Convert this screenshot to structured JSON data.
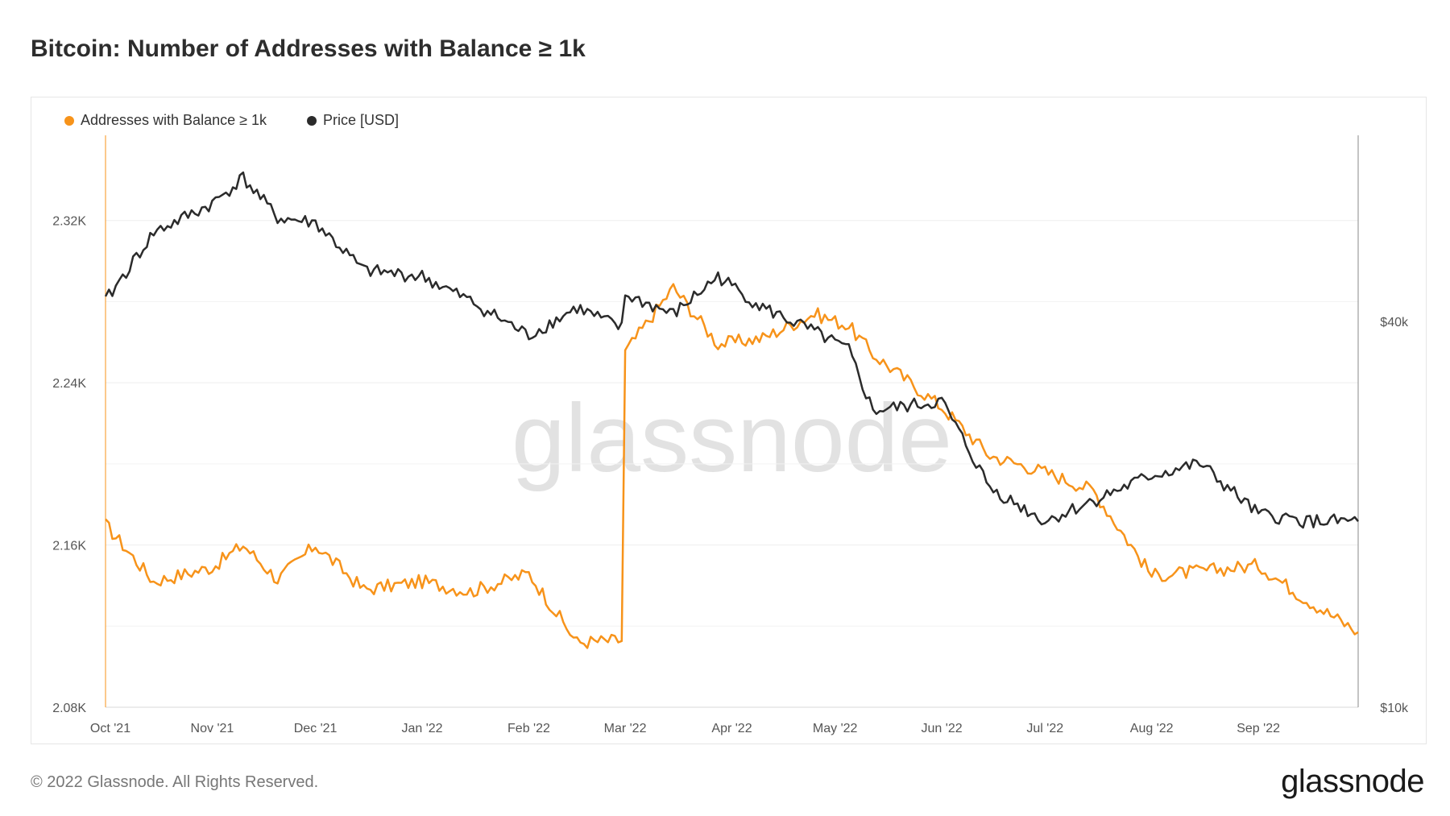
{
  "title": "Bitcoin: Number of Addresses with Balance ≥ 1k",
  "footer": "© 2022 Glassnode. All Rights Reserved.",
  "brand": "glassnode",
  "watermark": "glassnode",
  "colors": {
    "addresses": "#f7931a",
    "price": "#2b2b2b",
    "grid": "#eeeeee"
  },
  "chart_data": {
    "type": "line",
    "title": "Bitcoin: Number of Addresses with Balance ≥ 1k",
    "legend_position": "top-left",
    "grid": true,
    "x_ticks": [
      "Oct '21",
      "Nov '21",
      "Dec '21",
      "Jan '22",
      "Feb '22",
      "Mar '22",
      "Apr '22",
      "May '22",
      "Jun '22",
      "Jul '22",
      "Aug '22",
      "Sep '22"
    ],
    "x": [
      "2021-10-01",
      "2021-10-15",
      "2021-11-01",
      "2021-11-10",
      "2021-11-20",
      "2021-12-01",
      "2021-12-15",
      "2022-01-01",
      "2022-01-15",
      "2022-02-01",
      "2022-02-15",
      "2022-02-28",
      "2022-03-01",
      "2022-03-15",
      "2022-03-28",
      "2022-04-10",
      "2022-04-25",
      "2022-05-05",
      "2022-05-12",
      "2022-06-01",
      "2022-06-15",
      "2022-07-01",
      "2022-07-15",
      "2022-08-01",
      "2022-08-15",
      "2022-09-01",
      "2022-09-15",
      "2022-09-30"
    ],
    "left_axis": {
      "label": "",
      "ticks": [
        "2.08K",
        "2.16K",
        "2.24K",
        "2.32K"
      ],
      "ylim": [
        2080,
        2362
      ]
    },
    "right_axis": {
      "label": "",
      "ticks": [
        "$10k",
        "$40k"
      ],
      "scale": "log",
      "ylim": [
        10000,
        78000
      ]
    },
    "series": [
      {
        "name": "Addresses with Balance ≥ 1k",
        "axis": "left",
        "values": [
          2170,
          2142,
          2149,
          2160,
          2143,
          2160,
          2138,
          2142,
          2137,
          2146,
          2112,
          2113,
          2255,
          2287,
          2259,
          2262,
          2274,
          2268,
          2254,
          2228,
          2204,
          2196,
          2187,
          2145,
          2147,
          2150,
          2133,
          2117
        ]
      },
      {
        "name": "Price [USD]",
        "axis": "right",
        "values": [
          43000,
          55000,
          61000,
          67000,
          58000,
          57000,
          48000,
          47000,
          43000,
          38000,
          42000,
          39000,
          44000,
          41000,
          47000,
          42000,
          38500,
          36000,
          29000,
          30000,
          22000,
          19500,
          21000,
          23000,
          24000,
          20000,
          19500,
          19500
        ]
      }
    ]
  }
}
